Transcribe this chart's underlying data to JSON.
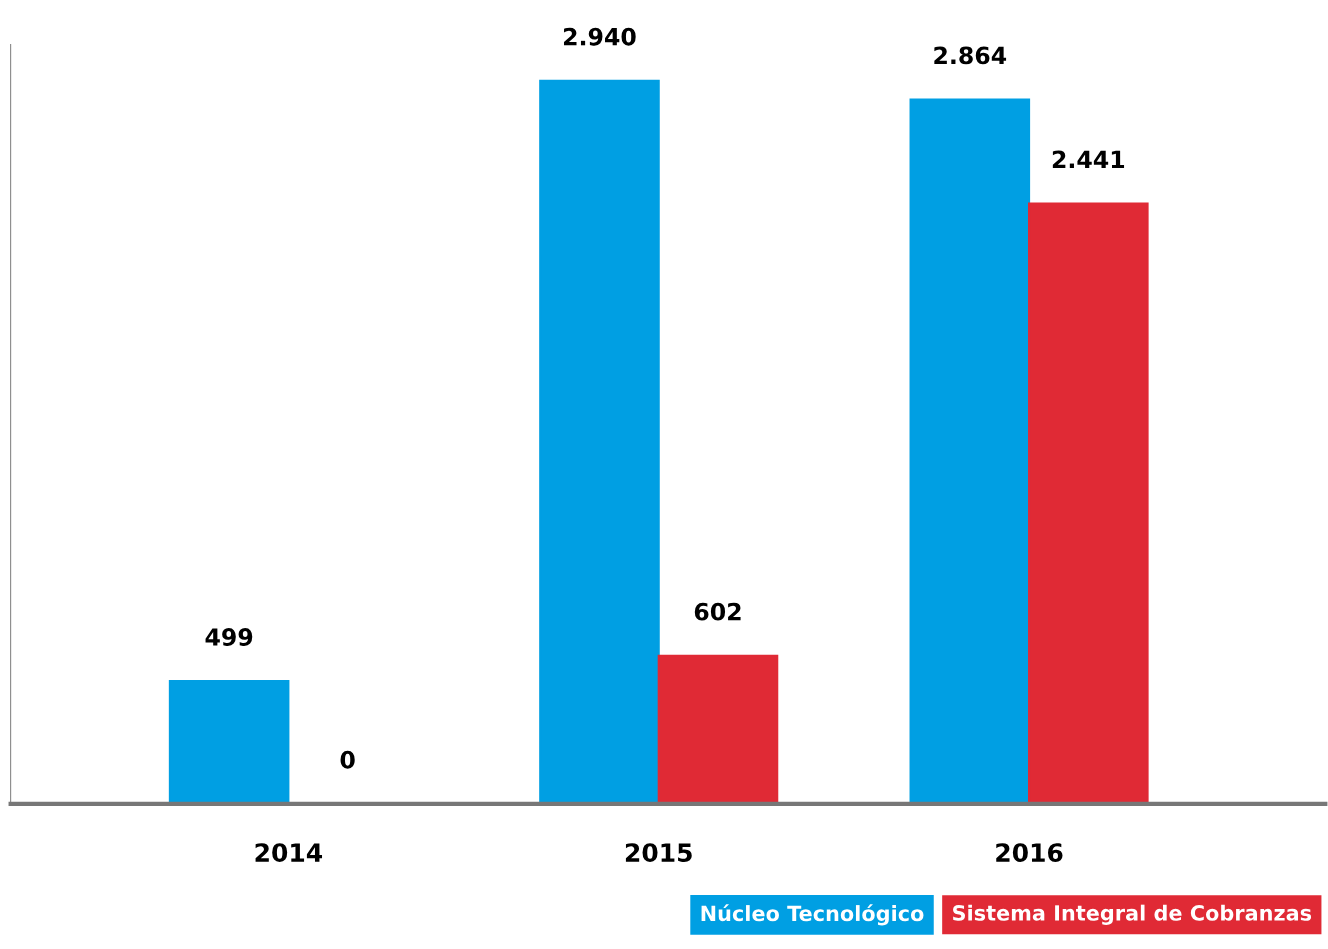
{
  "chart_data": {
    "type": "bar",
    "categories": [
      "2014",
      "2015",
      "2016"
    ],
    "series": [
      {
        "name": "Núcleo Tecnológico",
        "color": "#009fe3",
        "values": [
          499,
          2940,
          2864
        ],
        "value_labels": [
          "499",
          "2.940",
          "2.864"
        ]
      },
      {
        "name": "Sistema Integral de Cobranzas",
        "color": "#e02a35",
        "values": [
          0,
          602,
          2441
        ],
        "value_labels": [
          "0",
          "602",
          "2.441"
        ]
      }
    ],
    "legend": "bottom right",
    "grid": false
  }
}
